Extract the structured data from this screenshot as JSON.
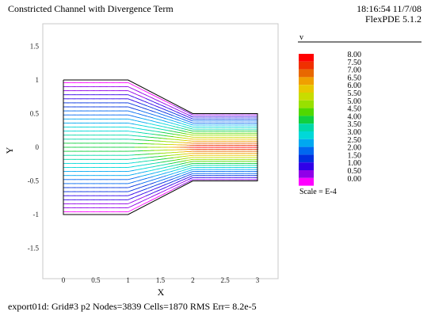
{
  "header": {
    "title": "Constricted Channel with Divergence Term",
    "timestamp": "18:16:54 11/7/08",
    "version": "FlexPDE 5.1.2"
  },
  "footer": {
    "status": "export01d:  Grid#3  p2  Nodes=3839 Cells=1870 RMS Err= 8.2e-5"
  },
  "chart_data": {
    "type": "line",
    "title": "Constricted Channel with Divergence Term",
    "xlabel": "X",
    "ylabel": "Y",
    "xlim": [
      -0.3,
      3.35
    ],
    "ylim": [
      -1.6,
      1.65
    ],
    "xticks": [
      "0",
      "0.5",
      "1",
      "1.5",
      "2",
      "2.5",
      "3"
    ],
    "xtick_values": [
      0,
      0.5,
      1,
      1.5,
      2,
      2.5,
      3
    ],
    "yticks": [
      "1.5",
      "1",
      "0.5",
      "0",
      "-0.5",
      "-1",
      "-1.5"
    ],
    "ytick_values": [
      1.5,
      1,
      0.5,
      0,
      -0.5,
      -1,
      -1.5
    ],
    "grid": false,
    "domain_boundary": {
      "x": [
        0,
        1,
        2,
        3,
        3,
        2,
        1,
        0,
        0
      ],
      "y": [
        1,
        1,
        0.5,
        0.5,
        -0.5,
        -0.5,
        -1,
        -1,
        1
      ]
    },
    "vector_field": {
      "variable": "v",
      "columns": 30,
      "rows": 33,
      "max_magnitude": 8.0
    },
    "legend": {
      "title": "v",
      "position": "right",
      "scale_label": "Scale = E-4",
      "levels": [
        "8.00",
        "7.50",
        "7.00",
        "6.50",
        "6.00",
        "5.50",
        "5.00",
        "4.50",
        "4.00",
        "3.50",
        "3.00",
        "2.50",
        "2.00",
        "1.50",
        "1.00",
        "0.50",
        "0.00"
      ],
      "colors": [
        "#ff0000",
        "#f03000",
        "#e86800",
        "#f0a000",
        "#e8c800",
        "#c8dc00",
        "#98e000",
        "#50d800",
        "#10d040",
        "#00d8a8",
        "#00d8d8",
        "#00a8f0",
        "#0068f0",
        "#0030e0",
        "#3000e8",
        "#9000e8",
        "#ff00ff"
      ]
    }
  }
}
